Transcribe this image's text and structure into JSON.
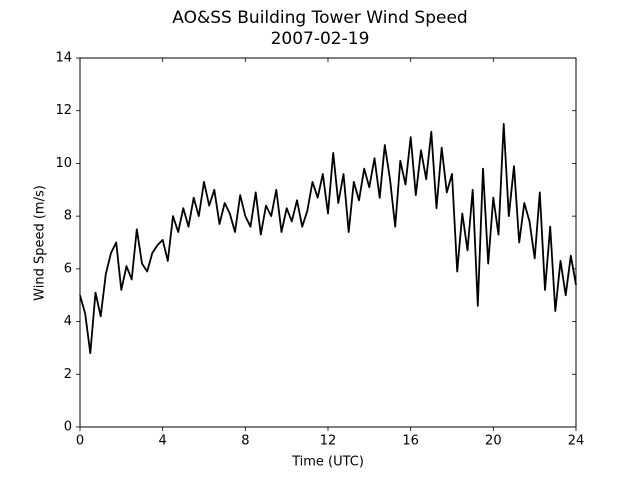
{
  "chart_data": {
    "type": "line",
    "title": "AO&SS Building Tower Wind Speed",
    "subtitle": "2007-02-19",
    "x_label": "Time (UTC)",
    "y_label": "Wind Speed (m/s)",
    "x": [
      0,
      0.25,
      0.5,
      0.75,
      1,
      1.25,
      1.5,
      1.75,
      2,
      2.25,
      2.5,
      2.75,
      3,
      3.25,
      3.5,
      3.75,
      4,
      4.25,
      4.5,
      4.75,
      5,
      5.25,
      5.5,
      5.75,
      6,
      6.25,
      6.5,
      6.75,
      7,
      7.25,
      7.5,
      7.75,
      8,
      8.25,
      8.5,
      8.75,
      9,
      9.25,
      9.5,
      9.75,
      10,
      10.25,
      10.5,
      10.75,
      11,
      11.25,
      11.5,
      11.75,
      12,
      12.25,
      12.5,
      12.75,
      13,
      13.25,
      13.5,
      13.75,
      14,
      14.25,
      14.5,
      14.75,
      15,
      15.25,
      15.5,
      15.75,
      16,
      16.25,
      16.5,
      16.75,
      17,
      17.25,
      17.5,
      17.75,
      18,
      18.25,
      18.5,
      18.75,
      19,
      19.25,
      19.5,
      19.75,
      20,
      20.25,
      20.5,
      20.75,
      21,
      21.25,
      21.5,
      21.75,
      22,
      22.25,
      22.5,
      22.75,
      23,
      23.25,
      23.5,
      23.75,
      24
    ],
    "series": [
      {
        "color": "#000000",
        "values": [
          5.0,
          4.3,
          2.8,
          5.1,
          4.2,
          5.8,
          6.6,
          7.0,
          5.2,
          6.1,
          5.6,
          7.5,
          6.2,
          5.9,
          6.6,
          6.9,
          7.1,
          6.3,
          8.0,
          7.4,
          8.3,
          7.6,
          8.7,
          8.0,
          9.3,
          8.4,
          9.0,
          7.7,
          8.5,
          8.1,
          7.4,
          8.8,
          8.0,
          7.6,
          8.9,
          7.3,
          8.4,
          8.0,
          9.0,
          7.4,
          8.3,
          7.8,
          8.6,
          7.6,
          8.2,
          9.3,
          8.7,
          9.6,
          8.1,
          10.4,
          8.5,
          9.6,
          7.4,
          9.3,
          8.6,
          9.8,
          9.1,
          10.2,
          8.7,
          10.7,
          9.4,
          7.6,
          10.1,
          9.2,
          11.0,
          8.8,
          10.5,
          9.4,
          11.2,
          8.3,
          10.6,
          8.9,
          9.6,
          5.9,
          8.1,
          6.7,
          9.0,
          4.6,
          9.8,
          6.2,
          8.7,
          7.3,
          11.5,
          8.0,
          9.9,
          7.0,
          8.5,
          7.8,
          6.4,
          8.9,
          5.2,
          7.6,
          4.4,
          6.3,
          5.0,
          6.5,
          5.4
        ]
      }
    ],
    "xlim": [
      0,
      24
    ],
    "xticks": [
      0,
      4,
      8,
      12,
      16,
      20,
      24
    ],
    "ylim": [
      0,
      14
    ],
    "yticks": [
      0,
      2,
      4,
      6,
      8,
      10,
      12,
      14
    ]
  }
}
